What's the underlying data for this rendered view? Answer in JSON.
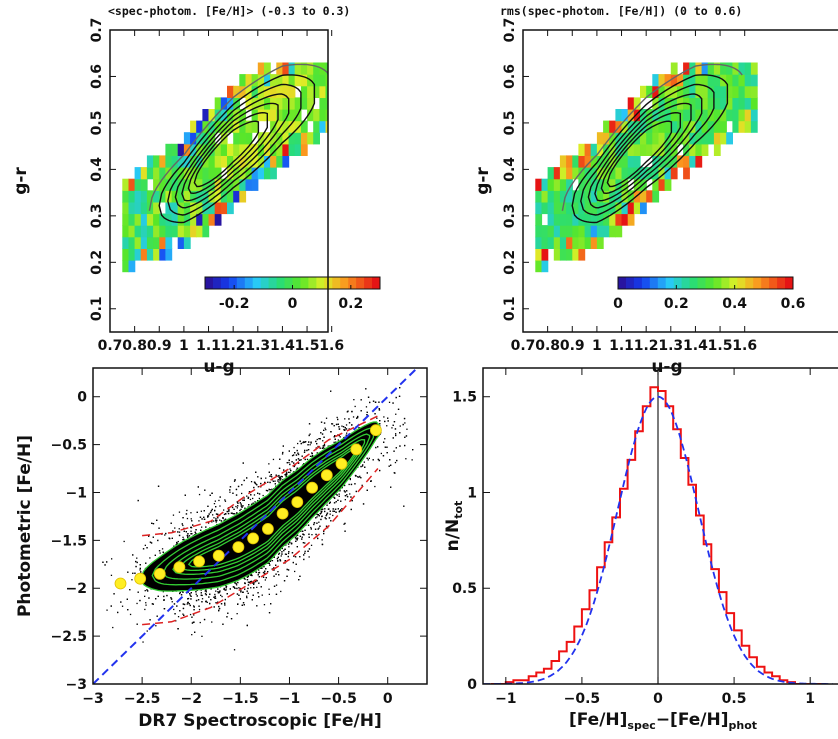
{
  "chart_data": [
    {
      "panel": "top-left",
      "type": "heatmap",
      "title": "<spec-photom. [Fe/H]> (-0.3 to 0.3)",
      "xlabel": "u-g",
      "ylabel": "g-r",
      "xlim": [
        0.7,
        1.65
      ],
      "ylim": [
        0.05,
        0.7
      ],
      "xticks": [
        "0.7",
        "0.8",
        "0.9",
        "1",
        "1.1",
        "1.2",
        "1.3",
        "1.4",
        "1.5",
        "1.6"
      ],
      "yticks": [
        "0.1",
        "0.2",
        "0.3",
        "0.4",
        "0.5",
        "0.6",
        "0.7"
      ],
      "colorbar": {
        "range": [
          -0.3,
          0.3
        ],
        "ticks": [
          "-0.2",
          "0",
          "0.2"
        ]
      },
      "contours": "density contours over the stellar locus",
      "cell_size": 0.025,
      "locus": {
        "u_g_range": [
          0.75,
          1.62
        ],
        "g_r_at": {
          "0.75": 0.28,
          "1.0": 0.35,
          "1.2": 0.45,
          "1.4": 0.53,
          "1.6": 0.58
        }
      }
    },
    {
      "panel": "top-right",
      "type": "heatmap",
      "title": "rms(spec-photom. [Fe/H]) (0 to 0.6)",
      "xlabel": "u-g",
      "ylabel": "g-r",
      "xlim": [
        0.7,
        1.65
      ],
      "ylim": [
        0.05,
        0.7
      ],
      "xticks": [
        "0.7",
        "0.8",
        "0.9",
        "1",
        "1.1",
        "1.2",
        "1.3",
        "1.4",
        "1.5",
        "1.6"
      ],
      "yticks": [
        "0.1",
        "0.2",
        "0.3",
        "0.4",
        "0.5",
        "0.6",
        "0.7"
      ],
      "colorbar": {
        "range": [
          0,
          0.6
        ],
        "ticks": [
          "0",
          "0.2",
          "0.4",
          "0.6"
        ]
      },
      "contours": "density contours over the stellar locus",
      "cell_size": 0.025
    },
    {
      "panel": "bottom-left",
      "type": "scatter",
      "xlabel": "DR7 Spectroscopic [Fe/H]",
      "ylabel": "Photometric [Fe/H]",
      "xlim": [
        -3,
        0.4
      ],
      "ylim": [
        -3,
        0.3
      ],
      "xticks": [
        "-3",
        "-2.5",
        "-2",
        "-1.5",
        "-1",
        "-0.5",
        "0"
      ],
      "yticks": [
        "-3",
        "-2.5",
        "-2",
        "-1.5",
        "-1",
        "-0.5",
        "0"
      ],
      "one_to_one_line": {
        "x": [
          -3,
          0.4
        ],
        "y": [
          -3,
          0.4
        ],
        "color": "#2233ee"
      },
      "binned_medians": {
        "x": [
          -2.72,
          -2.52,
          -2.32,
          -2.12,
          -1.92,
          -1.72,
          -1.52,
          -1.37,
          -1.22,
          -1.07,
          -0.92,
          -0.77,
          -0.62,
          -0.47,
          -0.32,
          -0.12
        ],
        "y": [
          -1.95,
          -1.9,
          -1.85,
          -1.78,
          -1.72,
          -1.66,
          -1.57,
          -1.48,
          -1.38,
          -1.22,
          -1.1,
          -0.95,
          -0.82,
          -0.7,
          -0.55,
          -0.35
        ]
      },
      "envelope": {
        "x": [
          -2.5,
          -2.2,
          -1.8,
          -1.4,
          -1.0,
          -0.6,
          -0.1
        ],
        "upper": [
          -1.45,
          -1.42,
          -1.3,
          -1.0,
          -0.75,
          -0.45,
          -0.2
        ],
        "lower": [
          -2.38,
          -2.35,
          -2.2,
          -1.95,
          -1.7,
          -1.35,
          -0.75
        ]
      },
      "colors": {
        "points": "#000000",
        "contours": "#33cc33",
        "envelope": "#dd2222",
        "medians": "#ffee22"
      }
    },
    {
      "panel": "bottom-right",
      "type": "line",
      "xlabel": "[Fe/H]spec−[Fe/H]phot",
      "xlabel_main": "[Fe/H]",
      "xlabel_sub1": "spec",
      "xlabel_mid": "−[Fe/H]",
      "xlabel_sub2": "phot",
      "ylabel": "n/Ntot",
      "ylabel_main": "n/N",
      "ylabel_sub": "tot",
      "xlim": [
        -1.15,
        1.15
      ],
      "ylim": [
        0,
        1.65
      ],
      "xticks": [
        "-1",
        "-0.5",
        "0",
        "0.5",
        "1"
      ],
      "yticks": [
        "0",
        "0.5",
        "1",
        "1.5"
      ],
      "histogram": {
        "bin_width": 0.05,
        "x_start": -1.1,
        "values": [
          0.0,
          0.0,
          0.01,
          0.02,
          0.02,
          0.04,
          0.06,
          0.08,
          0.12,
          0.17,
          0.22,
          0.3,
          0.39,
          0.49,
          0.61,
          0.74,
          0.87,
          1.02,
          1.17,
          1.32,
          1.45,
          1.55,
          1.53,
          1.45,
          1.33,
          1.18,
          1.04,
          0.88,
          0.73,
          0.6,
          0.48,
          0.37,
          0.28,
          0.2,
          0.14,
          0.09,
          0.06,
          0.04,
          0.02,
          0.01,
          0.0,
          0.0,
          0.0,
          0.0
        ],
        "color": "#ee1111"
      },
      "gaussian_fit": {
        "mu": 0.0,
        "amplitude": 1.5,
        "sigma": 0.265,
        "color": "#2233ee"
      },
      "vertical_line_x": 0
    }
  ]
}
